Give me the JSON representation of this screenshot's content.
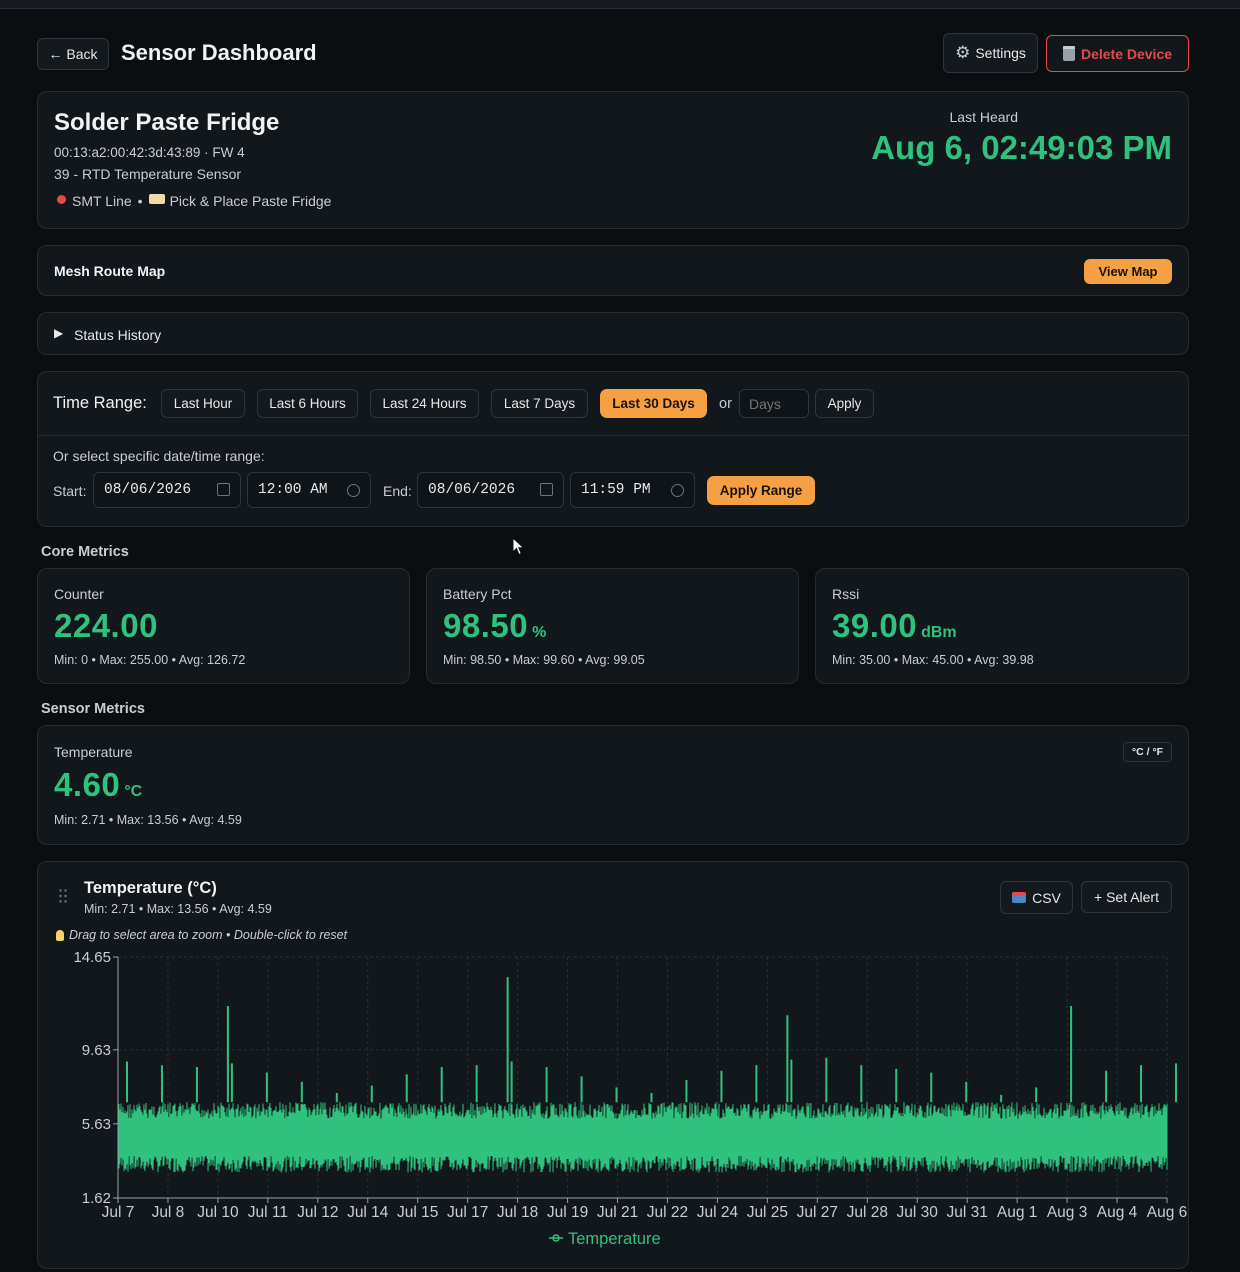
{
  "header": {
    "back_label": "← Back",
    "title": "Sensor Dashboard",
    "settings_label": "Settings",
    "delete_label": "Delete Device"
  },
  "device": {
    "name": "Solder Paste Fridge",
    "mac_fw": "00:13:a2:00:42:3d:43:89 · FW 4",
    "type": "39 - RTD Temperature Sensor",
    "location": "SMT Line",
    "separator": "•",
    "tag": "Pick & Place Paste Fridge",
    "last_heard_label": "Last Heard",
    "last_heard_value": "Aug 6, 02:49:03 PM"
  },
  "mesh": {
    "title": "Mesh Route Map",
    "button": "View Map"
  },
  "status_history": {
    "title": "Status History"
  },
  "time_range": {
    "label": "Time Range:",
    "options": [
      "Last Hour",
      "Last 6 Hours",
      "Last 24 Hours",
      "Last 7 Days",
      "Last 30 Days"
    ],
    "selected": "Last 30 Days",
    "or_label": "or",
    "days_placeholder": "Days",
    "apply_label": "Apply",
    "specific_label": "Or select specific date/time range:",
    "start_label": "Start:",
    "start_date": "08/06/2026",
    "start_time": "12:00 AM",
    "end_label": "End:",
    "end_date": "08/06/2026",
    "end_time": "11:59 PM",
    "apply_range_label": "Apply Range"
  },
  "core_metrics": {
    "title": "Core Metrics",
    "items": [
      {
        "label": "Counter",
        "value": "224.00",
        "unit": "",
        "stats": "Min: 0 • Max: 255.00 • Avg: 126.72"
      },
      {
        "label": "Battery Pct",
        "value": "98.50",
        "unit": "%",
        "stats": "Min: 98.50 • Max: 99.60 • Avg: 99.05"
      },
      {
        "label": "Rssi",
        "value": "39.00",
        "unit": "dBm",
        "stats": "Min: 35.00 • Max: 45.00 • Avg: 39.98"
      }
    ]
  },
  "sensor_metrics": {
    "title": "Sensor Metrics",
    "temperature": {
      "label": "Temperature",
      "value": "4.60",
      "unit": "°C",
      "stats": "Min: 2.71 • Max: 13.56 • Avg: 4.59",
      "toggle": "°C / °F"
    }
  },
  "chart_panel": {
    "title": "Temperature (°C)",
    "stats": "Min: 2.71 • Max: 13.56 • Avg: 4.59",
    "csv_label": "CSV",
    "alert_label": "+ Set Alert",
    "hint": "Drag to select area to zoom • Double-click to reset"
  },
  "colors": {
    "accent_green": "#2ec27e",
    "accent_orange": "#f5a043",
    "danger_red": "#e5484d"
  },
  "chart_data": {
    "type": "line",
    "title": "",
    "xlabel": "",
    "ylabel": "",
    "ylim": [
      1.62,
      14.65
    ],
    "y_ticks": [
      "14.65",
      "9.63",
      "5.63",
      "1.62"
    ],
    "x_ticks": [
      "Jul 7",
      "Jul 8",
      "Jul 10",
      "Jul 11",
      "Jul 12",
      "Jul 14",
      "Jul 15",
      "Jul 17",
      "Jul 18",
      "Jul 19",
      "Jul 21",
      "Jul 22",
      "Jul 24",
      "Jul 25",
      "Jul 27",
      "Jul 28",
      "Jul 30",
      "Jul 31",
      "Aug 1",
      "Aug 3",
      "Aug 4",
      "Aug 6"
    ],
    "x_range": [
      "Jul 7",
      "Aug 6"
    ],
    "grid": true,
    "legend": "bottom",
    "series": [
      {
        "name": "Temperature",
        "color": "#2ec27e",
        "baseline_range": [
          3.0,
          6.8
        ],
        "spikes": [
          {
            "x": "Jul 7",
            "y": 9.0
          },
          {
            "x": "Jul 8",
            "y": 8.8
          },
          {
            "x": "Jul 9",
            "y": 8.7
          },
          {
            "x": "Jul 10",
            "y": 8.9
          },
          {
            "x": "Jul 10",
            "y": 12.0
          },
          {
            "x": "Jul 11",
            "y": 8.4
          },
          {
            "x": "Jul 12",
            "y": 7.9
          },
          {
            "x": "Jul 13",
            "y": 7.3
          },
          {
            "x": "Jul 14",
            "y": 7.7
          },
          {
            "x": "Jul 15",
            "y": 8.3
          },
          {
            "x": "Jul 16",
            "y": 8.7
          },
          {
            "x": "Jul 17",
            "y": 8.8
          },
          {
            "x": "Jul 18",
            "y": 9.0
          },
          {
            "x": "Jul 18",
            "y": 13.56
          },
          {
            "x": "Jul 19",
            "y": 8.7
          },
          {
            "x": "Jul 20",
            "y": 8.2
          },
          {
            "x": "Jul 21",
            "y": 7.6
          },
          {
            "x": "Jul 22",
            "y": 7.3
          },
          {
            "x": "Jul 23",
            "y": 8.0
          },
          {
            "x": "Jul 24",
            "y": 8.5
          },
          {
            "x": "Jul 25",
            "y": 8.8
          },
          {
            "x": "Jul 26",
            "y": 9.1
          },
          {
            "x": "Jul 26",
            "y": 11.5
          },
          {
            "x": "Jul 27",
            "y": 9.2
          },
          {
            "x": "Jul 28",
            "y": 8.8
          },
          {
            "x": "Jul 29",
            "y": 8.6
          },
          {
            "x": "Jul 30",
            "y": 8.4
          },
          {
            "x": "Jul 31",
            "y": 7.9
          },
          {
            "x": "Aug 1",
            "y": 7.2
          },
          {
            "x": "Aug 2",
            "y": 7.6
          },
          {
            "x": "Aug 3",
            "y": 12.0
          },
          {
            "x": "Aug 4",
            "y": 8.5
          },
          {
            "x": "Aug 5",
            "y": 8.8
          },
          {
            "x": "Aug 6",
            "y": 8.9
          }
        ]
      }
    ]
  }
}
